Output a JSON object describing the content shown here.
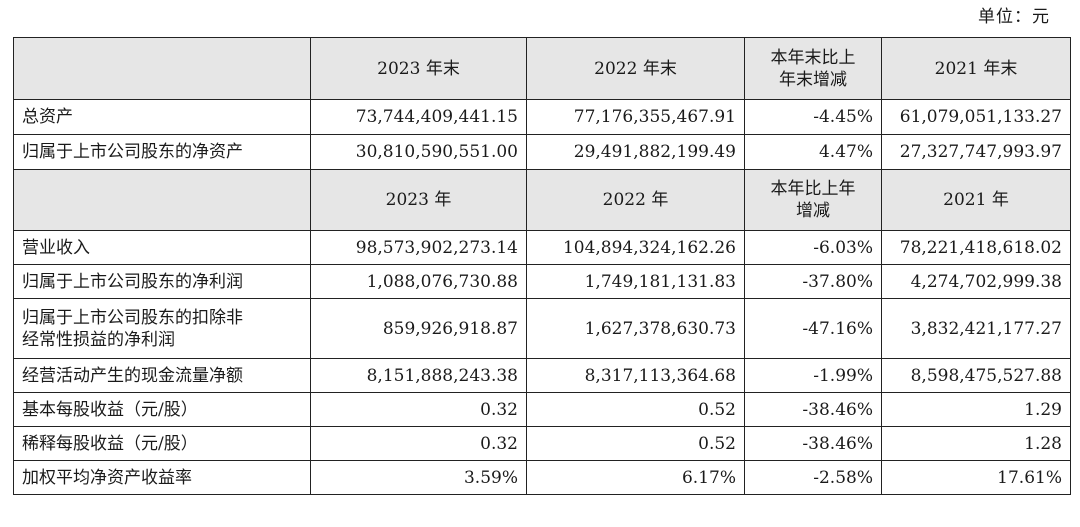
{
  "unit_label": "单位：元",
  "section1": {
    "headers": [
      "2023 年末",
      "2022 年末",
      "本年末比上\n年末增减",
      "2021 年末"
    ],
    "rows": [
      {
        "label": "总资产",
        "values": [
          "73,744,409,441.15",
          "77,176,355,467.91",
          "-4.45%",
          "61,079,051,133.27"
        ]
      },
      {
        "label": "归属于上市公司股东的净资产",
        "values": [
          "30,810,590,551.00",
          "29,491,882,199.49",
          "4.47%",
          "27,327,747,993.97"
        ]
      }
    ]
  },
  "section2": {
    "headers": [
      "2023 年",
      "2022 年",
      "本年比上年\n增减",
      "2021 年"
    ],
    "rows": [
      {
        "label": "营业收入",
        "values": [
          "98,573,902,273.14",
          "104,894,324,162.26",
          "-6.03%",
          "78,221,418,618.02"
        ]
      },
      {
        "label": "归属于上市公司股东的净利润",
        "values": [
          "1,088,076,730.88",
          "1,749,181,131.83",
          "-37.80%",
          "4,274,702,999.38"
        ]
      },
      {
        "label": "归属于上市公司股东的扣除非\n经常性损益的净利润",
        "values": [
          "859,926,918.87",
          "1,627,378,630.73",
          "-47.16%",
          "3,832,421,177.27"
        ]
      },
      {
        "label": "经营活动产生的现金流量净额",
        "values": [
          "8,151,888,243.38",
          "8,317,113,364.68",
          "-1.99%",
          "8,598,475,527.88"
        ]
      },
      {
        "label": "基本每股收益（元/股）",
        "values": [
          "0.32",
          "0.52",
          "-38.46%",
          "1.29"
        ]
      },
      {
        "label": "稀释每股收益（元/股）",
        "values": [
          "0.32",
          "0.52",
          "-38.46%",
          "1.28"
        ]
      },
      {
        "label": "加权平均净资产收益率",
        "values": [
          "3.59%",
          "6.17%",
          "-2.58%",
          "17.61%"
        ]
      }
    ]
  }
}
